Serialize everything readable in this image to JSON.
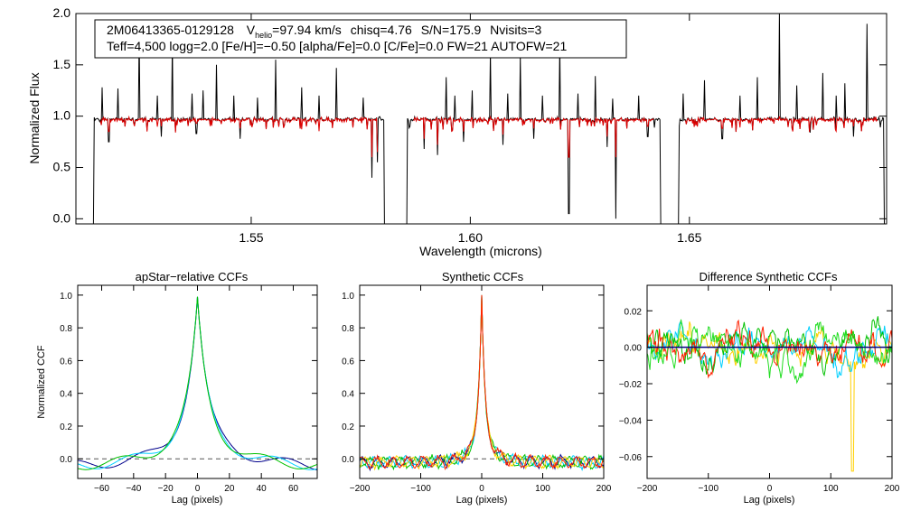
{
  "header": {
    "object_id": "2M06413365-0129128",
    "vhelio_prefix": "V",
    "vhelio_subscript": "helio",
    "vhelio_value": "=97.94 km/s",
    "chisq": "chisq=4.76",
    "snr": "S/N=175.9",
    "nvisits": "Nvisits=3",
    "params_line": "Teff=4,500 logg=2.0 [Fe/H]=−0.50 [alpha/Fe]=0.0 [C/Fe]=0.0 FW=21 AUTOFW=21"
  },
  "colors": {
    "observed": "#000000",
    "model": "#e00000",
    "series": [
      "#00008b",
      "#00d0ff",
      "#00c000",
      "#ff2000",
      "#ffd000",
      "#22dd22"
    ],
    "zero_line": "#555555"
  },
  "chart_data": [
    {
      "type": "line",
      "name": "spectrum",
      "xlabel": "Wavelength (microns)",
      "ylabel": "Normalized Flux",
      "xlim": [
        1.51,
        1.695
      ],
      "ylim": [
        -0.05,
        2.0
      ],
      "xticks": [
        1.55,
        1.6,
        1.65
      ],
      "xtick_labels": [
        "1.55",
        "1.60",
        "1.65"
      ],
      "yticks": [
        0.0,
        0.5,
        1.0,
        1.5,
        2.0
      ],
      "ytick_labels": [
        "0.0",
        "0.5",
        "1.0",
        "1.5",
        "2.0"
      ],
      "chip_ranges": [
        [
          1.514,
          1.5805
        ],
        [
          1.5855,
          1.6435
        ],
        [
          1.6475,
          1.6945
        ]
      ],
      "continuum": 0.97,
      "emission_spikes": [
        [
          1.516,
          1.28
        ],
        [
          1.5195,
          1.27
        ],
        [
          1.5245,
          1.8
        ],
        [
          1.5285,
          1.2
        ],
        [
          1.532,
          1.72
        ],
        [
          1.5365,
          1.22
        ],
        [
          1.539,
          1.25
        ],
        [
          1.542,
          1.5
        ],
        [
          1.546,
          1.2
        ],
        [
          1.5515,
          1.18
        ],
        [
          1.5555,
          1.55
        ],
        [
          1.5615,
          1.28
        ],
        [
          1.5655,
          1.2
        ],
        [
          1.5695,
          1.47
        ],
        [
          1.5755,
          1.18
        ],
        [
          1.5945,
          1.38
        ],
        [
          1.5965,
          1.2
        ],
        [
          1.6005,
          1.25
        ],
        [
          1.6045,
          1.62
        ],
        [
          1.6085,
          1.22
        ],
        [
          1.6115,
          1.58
        ],
        [
          1.6165,
          1.2
        ],
        [
          1.6205,
          1.7
        ],
        [
          1.6245,
          1.22
        ],
        [
          1.6285,
          1.39
        ],
        [
          1.6325,
          1.17
        ],
        [
          1.6385,
          1.2
        ],
        [
          1.6485,
          1.22
        ],
        [
          1.6535,
          1.35
        ],
        [
          1.6615,
          1.2
        ],
        [
          1.6655,
          1.38
        ],
        [
          1.6705,
          2.0
        ],
        [
          1.6745,
          1.3
        ],
        [
          1.6805,
          1.42
        ],
        [
          1.6835,
          1.2
        ],
        [
          1.6855,
          1.32
        ],
        [
          1.6905,
          1.9
        ]
      ],
      "absorption_lines": [
        [
          1.5175,
          0.75
        ],
        [
          1.5295,
          0.8
        ],
        [
          1.5375,
          0.83
        ],
        [
          1.5475,
          0.78
        ],
        [
          1.5775,
          0.4
        ],
        [
          1.5788,
          0.55
        ],
        [
          1.5895,
          0.68
        ],
        [
          1.5925,
          0.62
        ],
        [
          1.5985,
          0.75
        ],
        [
          1.6075,
          0.72
        ],
        [
          1.6145,
          0.78
        ],
        [
          1.6225,
          0.05
        ],
        [
          1.6312,
          0.7
        ],
        [
          1.6332,
          0.0
        ],
        [
          1.6405,
          0.8
        ],
        [
          1.6575,
          0.78
        ],
        [
          1.6775,
          0.84
        ],
        [
          1.6875,
          0.8
        ]
      ],
      "chip_edge_drops": [
        1.514,
        1.5805,
        1.5855,
        1.6475,
        1.6945
      ]
    },
    {
      "type": "line",
      "name": "apstar-ccf",
      "title": "apStar−relative CCFs",
      "xlabel": "Lag (pixels)",
      "ylabel": "Normalized CCF",
      "xlim": [
        -75,
        75
      ],
      "ylim": [
        -0.12,
        1.06
      ],
      "xticks": [
        -60,
        -40,
        -20,
        0,
        20,
        40,
        60
      ],
      "xtick_labels": [
        "−60",
        "−40",
        "−20",
        "0",
        "20",
        "40",
        "60"
      ],
      "yticks": [
        0.0,
        0.2,
        0.4,
        0.6,
        0.8,
        1.0
      ],
      "ytick_labels": [
        "0.0",
        "0.2",
        "0.4",
        "0.6",
        "0.8",
        "1.0"
      ],
      "peak": 0.99,
      "wing_level": -0.05,
      "series_count": 3
    },
    {
      "type": "line",
      "name": "synthetic-ccf",
      "title": "Synthetic CCFs",
      "xlabel": "Lag (pixels)",
      "xlim": [
        -200,
        200
      ],
      "ylim": [
        -0.12,
        1.06
      ],
      "xticks": [
        -200,
        -100,
        0,
        100,
        200
      ],
      "xtick_labels": [
        "−200",
        "−100",
        "0",
        "100",
        "200"
      ],
      "yticks": [
        0.0,
        0.2,
        0.4,
        0.6,
        0.8,
        1.0
      ],
      "ytick_labels": [
        "0.0",
        "0.2",
        "0.4",
        "0.6",
        "0.8",
        "1.0"
      ],
      "peak": 1.0,
      "wing_level": -0.02,
      "series_count": 5
    },
    {
      "type": "line",
      "name": "difference-ccf",
      "title": "Difference Synthetic CCFs",
      "xlabel": "Lag (pixels)",
      "xlim": [
        -200,
        200
      ],
      "ylim": [
        -0.072,
        0.034
      ],
      "xticks": [
        -200,
        -100,
        0,
        100,
        200
      ],
      "xtick_labels": [
        "−200",
        "−100",
        "0",
        "100",
        "200"
      ],
      "yticks": [
        -0.06,
        -0.04,
        -0.02,
        0.0,
        0.02
      ],
      "ytick_labels": [
        "−0.06",
        "−0.04",
        "−0.02",
        "0.00",
        "0.02"
      ],
      "min_dip": [
        135,
        -0.068
      ],
      "series_count": 5
    }
  ]
}
